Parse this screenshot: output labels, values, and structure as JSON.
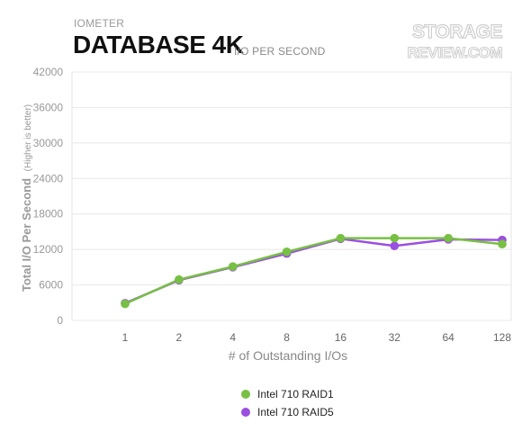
{
  "header": {
    "category": "IOMETER",
    "title": "DATABASE 4K",
    "unit": "I/O PER SECOND",
    "logo_line1": "STORAGE",
    "logo_line2": "REVIEW.COM"
  },
  "colors": {
    "raid1": "#77c043",
    "raid5": "#9b4fe0",
    "axis_text": "#999999",
    "grid": "#e8e8e8"
  },
  "chart_data": {
    "type": "line",
    "title": "DATABASE 4K",
    "subtitle": "I/O PER SECOND",
    "xlabel": "# of Outstanding I/Os",
    "ylabel": "Total I/O Per Second",
    "ylabel_note": "(Higher is better)",
    "categories": [
      "1",
      "2",
      "4",
      "8",
      "16",
      "32",
      "64",
      "128"
    ],
    "ylim": [
      0,
      42000
    ],
    "yticks": [
      0,
      6000,
      12000,
      18000,
      24000,
      30000,
      36000,
      42000
    ],
    "grid": true,
    "legend_position": "bottom",
    "series": [
      {
        "name": "Intel 710 RAID1",
        "color": "#77c043",
        "values": [
          2800,
          6900,
          9100,
          11600,
          13900,
          13900,
          13900,
          12900
        ]
      },
      {
        "name": "Intel 710 RAID5",
        "color": "#9b4fe0",
        "values": [
          2900,
          6800,
          9000,
          11300,
          13800,
          12600,
          13700,
          13600
        ]
      }
    ]
  }
}
